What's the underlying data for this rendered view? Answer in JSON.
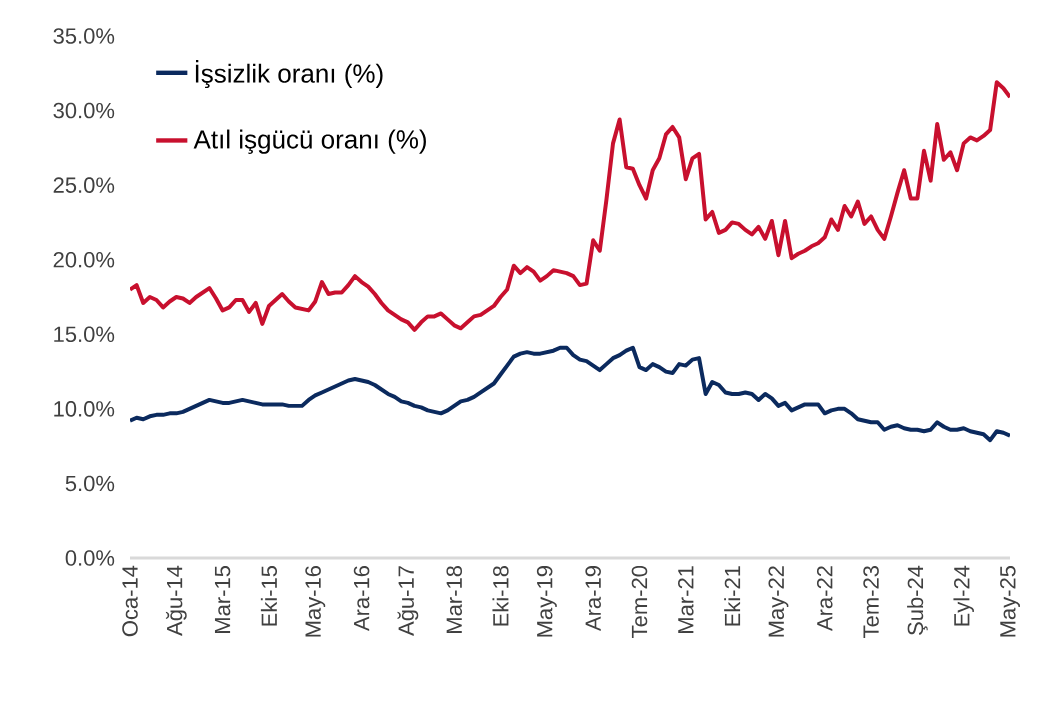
{
  "chart_data": {
    "type": "line",
    "categories": [
      "Oca-14",
      null,
      null,
      null,
      null,
      null,
      null,
      "Ağu-14",
      null,
      null,
      null,
      null,
      null,
      null,
      "Mar-15",
      null,
      null,
      null,
      null,
      null,
      null,
      "Eki-15",
      null,
      null,
      null,
      null,
      null,
      null,
      "May-16",
      null,
      null,
      null,
      null,
      null,
      null,
      "Ara-16",
      null,
      null,
      null,
      null,
      null,
      null,
      "Ağu-17",
      null,
      null,
      null,
      null,
      null,
      null,
      "Mar-18",
      null,
      null,
      null,
      null,
      null,
      null,
      "Eki-18",
      null,
      null,
      null,
      null,
      null,
      null,
      "May-19",
      null,
      null,
      null,
      null,
      null,
      null,
      "Ara-19",
      null,
      null,
      null,
      null,
      null,
      null,
      "Tem-20",
      null,
      null,
      null,
      null,
      null,
      null,
      "Mar-21",
      null,
      null,
      null,
      null,
      null,
      null,
      "Eki-21",
      null,
      null,
      null,
      null,
      null,
      null,
      "May-22",
      null,
      null,
      null,
      null,
      null,
      null,
      "Ara-22",
      null,
      null,
      null,
      null,
      null,
      null,
      "Tem-23",
      null,
      null,
      null,
      null,
      null,
      null,
      "Şub-24",
      null,
      null,
      null,
      null,
      null,
      null,
      "Eyl-24",
      null,
      null,
      null,
      null,
      null,
      null,
      "May-25"
    ],
    "series": [
      {
        "name": "İşsizlik oranı (%)",
        "color": "#0b2a5e",
        "values": [
          9.2,
          9.4,
          9.3,
          9.5,
          9.6,
          9.6,
          9.7,
          9.7,
          9.8,
          10.0,
          10.2,
          10.4,
          10.6,
          10.5,
          10.4,
          10.4,
          10.5,
          10.6,
          10.5,
          10.4,
          10.3,
          10.3,
          10.3,
          10.3,
          10.2,
          10.2,
          10.2,
          10.6,
          10.9,
          11.1,
          11.3,
          11.5,
          11.7,
          11.9,
          12.0,
          11.9,
          11.8,
          11.6,
          11.3,
          11.0,
          10.8,
          10.5,
          10.4,
          10.2,
          10.1,
          9.9,
          9.8,
          9.7,
          9.9,
          10.2,
          10.5,
          10.6,
          10.8,
          11.1,
          11.4,
          11.7,
          12.3,
          12.9,
          13.5,
          13.7,
          13.8,
          13.7,
          13.7,
          13.8,
          13.9,
          14.1,
          14.1,
          13.6,
          13.3,
          13.2,
          12.9,
          12.6,
          13.0,
          13.4,
          13.6,
          13.9,
          14.1,
          12.8,
          12.6,
          13.0,
          12.8,
          12.5,
          12.4,
          13.0,
          12.9,
          13.3,
          13.4,
          11.0,
          11.8,
          11.6,
          11.1,
          11.0,
          11.0,
          11.1,
          11.0,
          10.6,
          11.0,
          10.7,
          10.2,
          10.4,
          9.9,
          10.1,
          10.3,
          10.3,
          10.3,
          9.7,
          9.9,
          10.0,
          10.0,
          9.7,
          9.3,
          9.2,
          9.1,
          9.1,
          8.6,
          8.8,
          8.9,
          8.7,
          8.6,
          8.6,
          8.5,
          8.6,
          9.1,
          8.8,
          8.6,
          8.6,
          8.7,
          8.5,
          8.4,
          8.3,
          7.9,
          8.5,
          8.4,
          8.2
        ]
      },
      {
        "name": "Atıl işgücü oranı (%)",
        "color": "#c8102e",
        "values": [
          18.0,
          18.3,
          17.1,
          17.5,
          17.3,
          16.8,
          17.2,
          17.5,
          17.4,
          17.1,
          17.5,
          17.8,
          18.1,
          17.4,
          16.6,
          16.8,
          17.3,
          17.3,
          16.5,
          17.1,
          15.7,
          16.9,
          17.3,
          17.7,
          17.2,
          16.8,
          16.7,
          16.6,
          17.2,
          18.5,
          17.7,
          17.8,
          17.8,
          18.3,
          18.9,
          18.5,
          18.2,
          17.7,
          17.1,
          16.6,
          16.3,
          16.0,
          15.8,
          15.3,
          15.8,
          16.2,
          16.2,
          16.4,
          16.0,
          15.6,
          15.4,
          15.8,
          16.2,
          16.3,
          16.6,
          16.9,
          17.5,
          18.0,
          19.6,
          19.1,
          19.5,
          19.2,
          18.6,
          18.9,
          19.3,
          19.2,
          19.1,
          18.9,
          18.3,
          18.4,
          21.3,
          20.6,
          24.0,
          27.8,
          29.4,
          26.2,
          26.1,
          25.0,
          24.1,
          26.0,
          26.8,
          28.4,
          28.9,
          28.2,
          25.4,
          26.8,
          27.1,
          22.7,
          23.2,
          21.8,
          22.0,
          22.5,
          22.4,
          22.0,
          21.7,
          22.2,
          21.4,
          22.6,
          20.3,
          22.6,
          20.1,
          20.4,
          20.6,
          20.9,
          21.1,
          21.5,
          22.7,
          22.0,
          23.6,
          22.9,
          23.9,
          22.4,
          22.9,
          22.0,
          21.4,
          22.9,
          24.5,
          26.0,
          24.1,
          24.1,
          27.3,
          25.3,
          29.1,
          26.7,
          27.2,
          26.0,
          27.8,
          28.2,
          28.0,
          28.3,
          28.7,
          31.9,
          31.5,
          30.9
        ]
      }
    ],
    "ylim": [
      0,
      35
    ],
    "yticks": [
      {
        "value": 0,
        "label": "0.0%"
      },
      {
        "value": 5,
        "label": "5.0%"
      },
      {
        "value": 10,
        "label": "10.0%"
      },
      {
        "value": 15,
        "label": "15.0%"
      },
      {
        "value": 20,
        "label": "20.0%"
      },
      {
        "value": 25,
        "label": "25.0%"
      },
      {
        "value": 30,
        "label": "30.0%"
      },
      {
        "value": 35,
        "label": "35.0%"
      }
    ],
    "grid": false,
    "legend": "top left"
  }
}
